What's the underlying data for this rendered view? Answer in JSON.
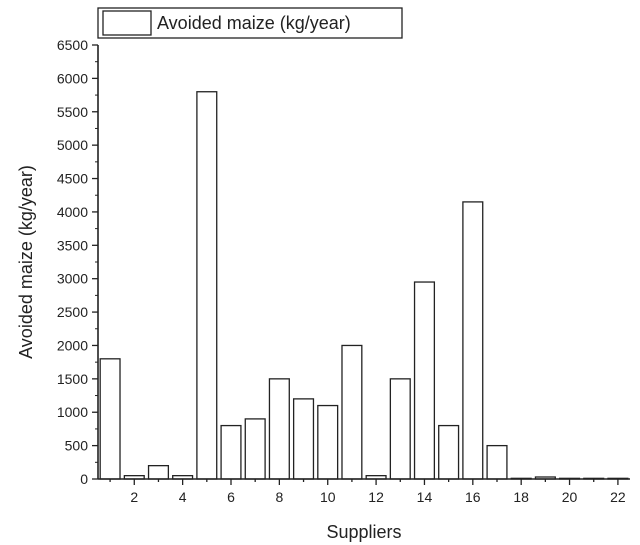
{
  "chart_data": {
    "type": "bar",
    "title": "",
    "xlabel": "Suppliers",
    "ylabel": "Avoided maize (kg/year)",
    "legend": {
      "position": "top-left",
      "entries": [
        "Avoided maize (kg/year)"
      ]
    },
    "grid": false,
    "x": [
      1,
      2,
      3,
      4,
      5,
      6,
      7,
      8,
      9,
      10,
      11,
      12,
      13,
      14,
      15,
      16,
      17,
      18,
      19,
      20,
      21,
      22
    ],
    "xlim": [
      0.5,
      22.5
    ],
    "x_ticks": [
      2,
      4,
      6,
      8,
      10,
      12,
      14,
      16,
      18,
      20,
      22
    ],
    "ylim": [
      0,
      6500
    ],
    "y_ticks": [
      0,
      500,
      1000,
      1500,
      2000,
      2500,
      3000,
      3500,
      4000,
      4500,
      5000,
      5500,
      6000,
      6500
    ],
    "series": [
      {
        "name": "Avoided maize (kg/year)",
        "values": [
          1800,
          50,
          200,
          50,
          5800,
          800,
          900,
          1500,
          1200,
          1100,
          2000,
          50,
          1500,
          2950,
          800,
          4150,
          500,
          10,
          30,
          10,
          10,
          10
        ]
      }
    ],
    "colors": {
      "bar_fill": "#ffffff",
      "bar_stroke": "#222222",
      "axis": "#222222"
    }
  }
}
